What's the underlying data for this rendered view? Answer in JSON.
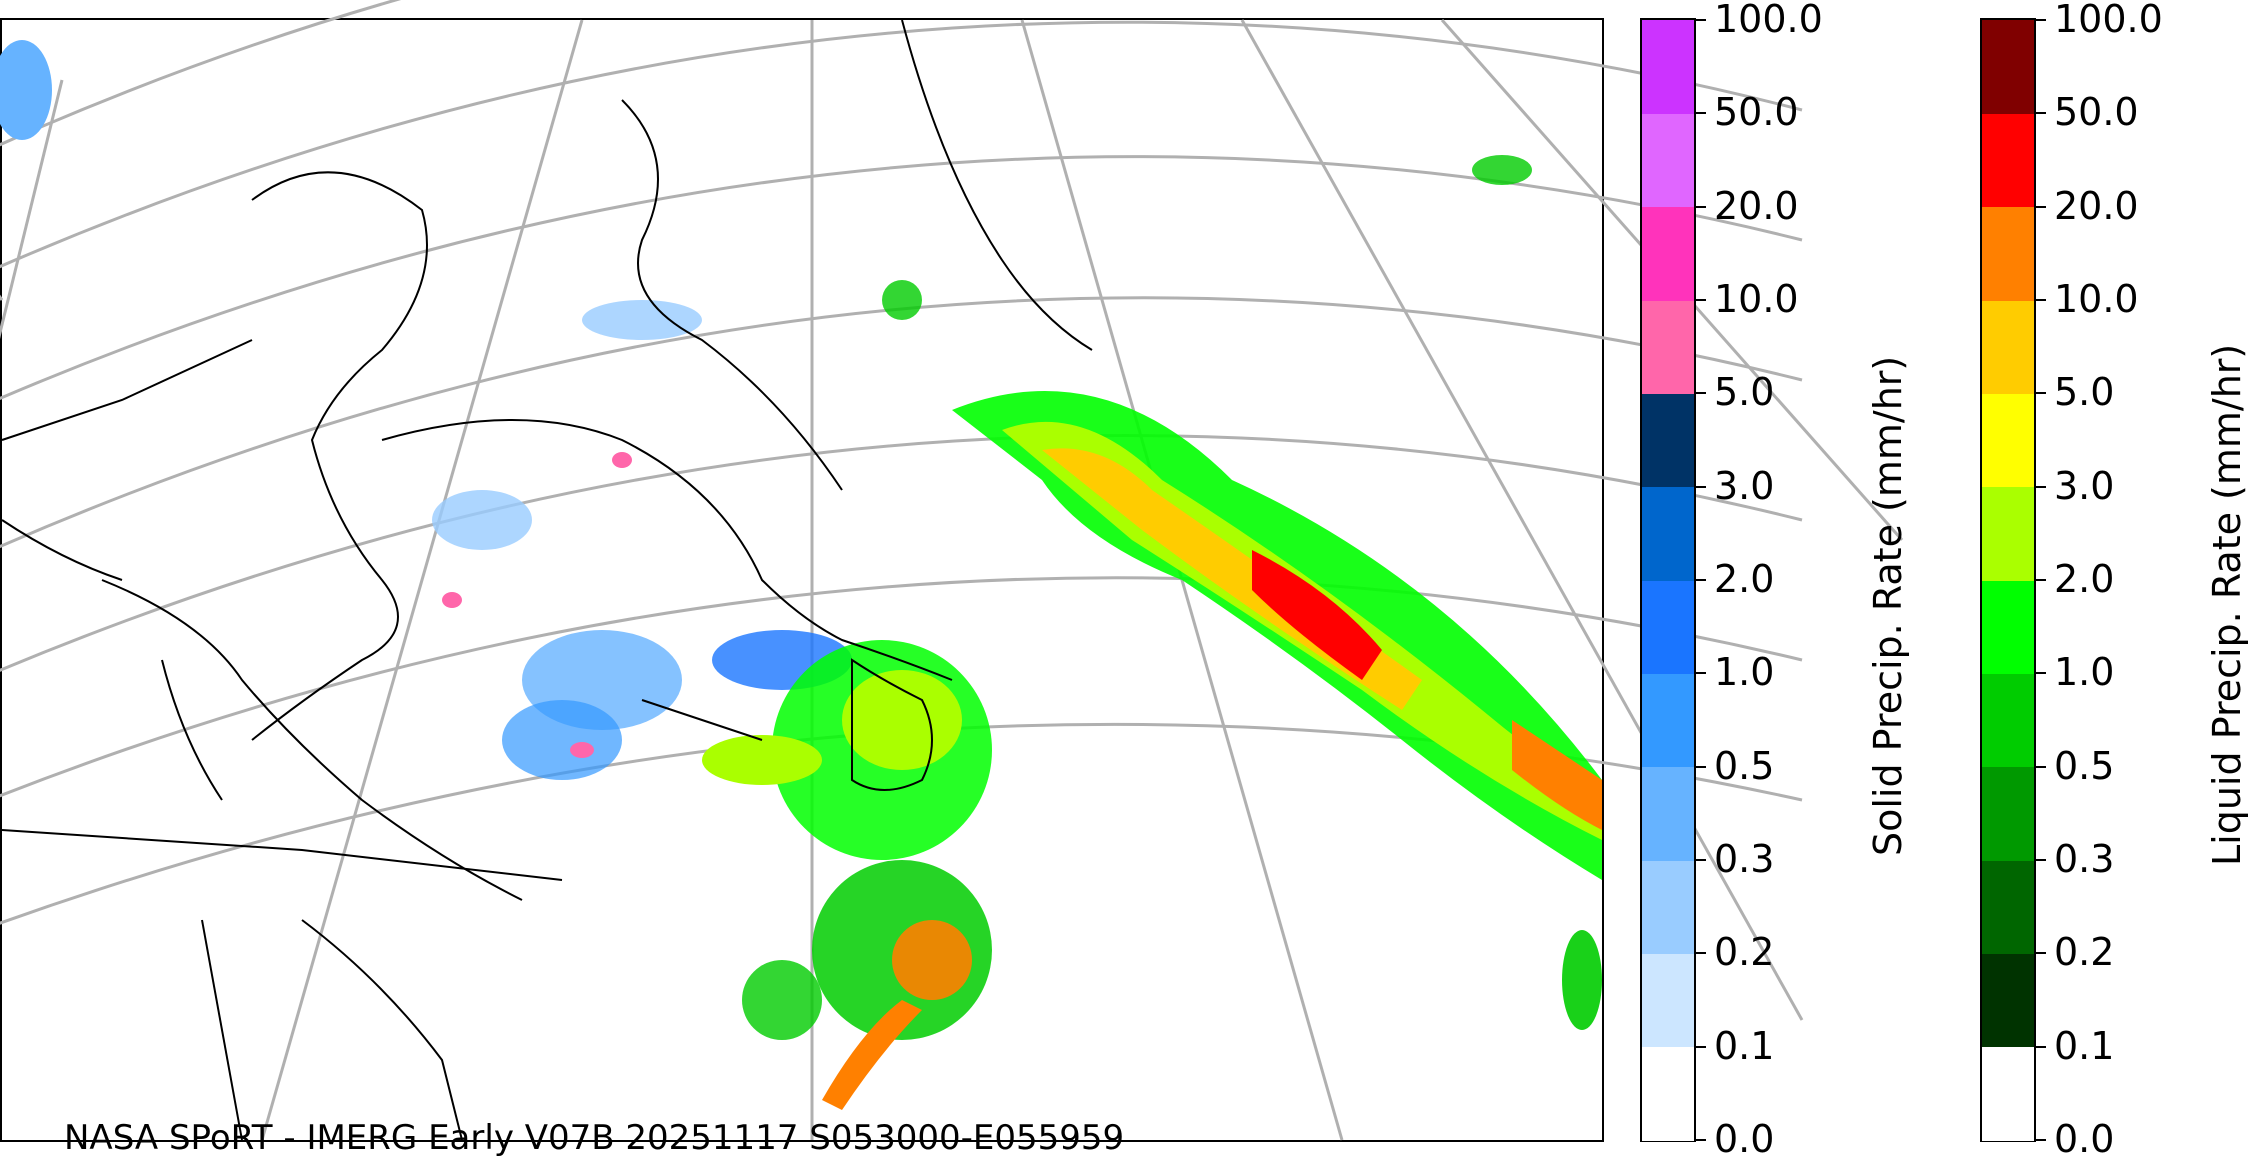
{
  "map": {
    "credit": "NASA SPoRT - IMERG Early V07B 20251117 S053000-E055959",
    "background": "#ffffff",
    "coastline_color": "#000000",
    "gridline_color": "#b0b0b0",
    "features": [
      "coastlines",
      "state-borders",
      "lat-lon-gridlines",
      "precipitation-overlay"
    ]
  },
  "solid_colorbar": {
    "label": "Solid Precip. Rate (mm/hr)",
    "ticks": [
      "0.0",
      "0.1",
      "0.2",
      "0.3",
      "0.5",
      "1.0",
      "2.0",
      "3.0",
      "5.0",
      "10.0",
      "20.0",
      "50.0",
      "100.0"
    ],
    "colors": [
      "#ffffff",
      "#cce6ff",
      "#99ccff",
      "#66b3ff",
      "#3399ff",
      "#1a75ff",
      "#0066cc",
      "#003366",
      "#ff66aa",
      "#ff33bb",
      "#e066ff",
      "#cc33ff",
      "#9900cc"
    ]
  },
  "liquid_colorbar": {
    "label": "Liquid Precip. Rate (mm/hr)",
    "ticks": [
      "0.0",
      "0.1",
      "0.2",
      "0.3",
      "0.5",
      "1.0",
      "2.0",
      "3.0",
      "5.0",
      "10.0",
      "20.0",
      "50.0",
      "100.0"
    ],
    "colors": [
      "#ffffff",
      "#003300",
      "#006600",
      "#009900",
      "#00cc00",
      "#00ff00",
      "#aaff00",
      "#ffff00",
      "#ffcc00",
      "#ff8000",
      "#ff0000",
      "#800000",
      "#400000"
    ]
  }
}
